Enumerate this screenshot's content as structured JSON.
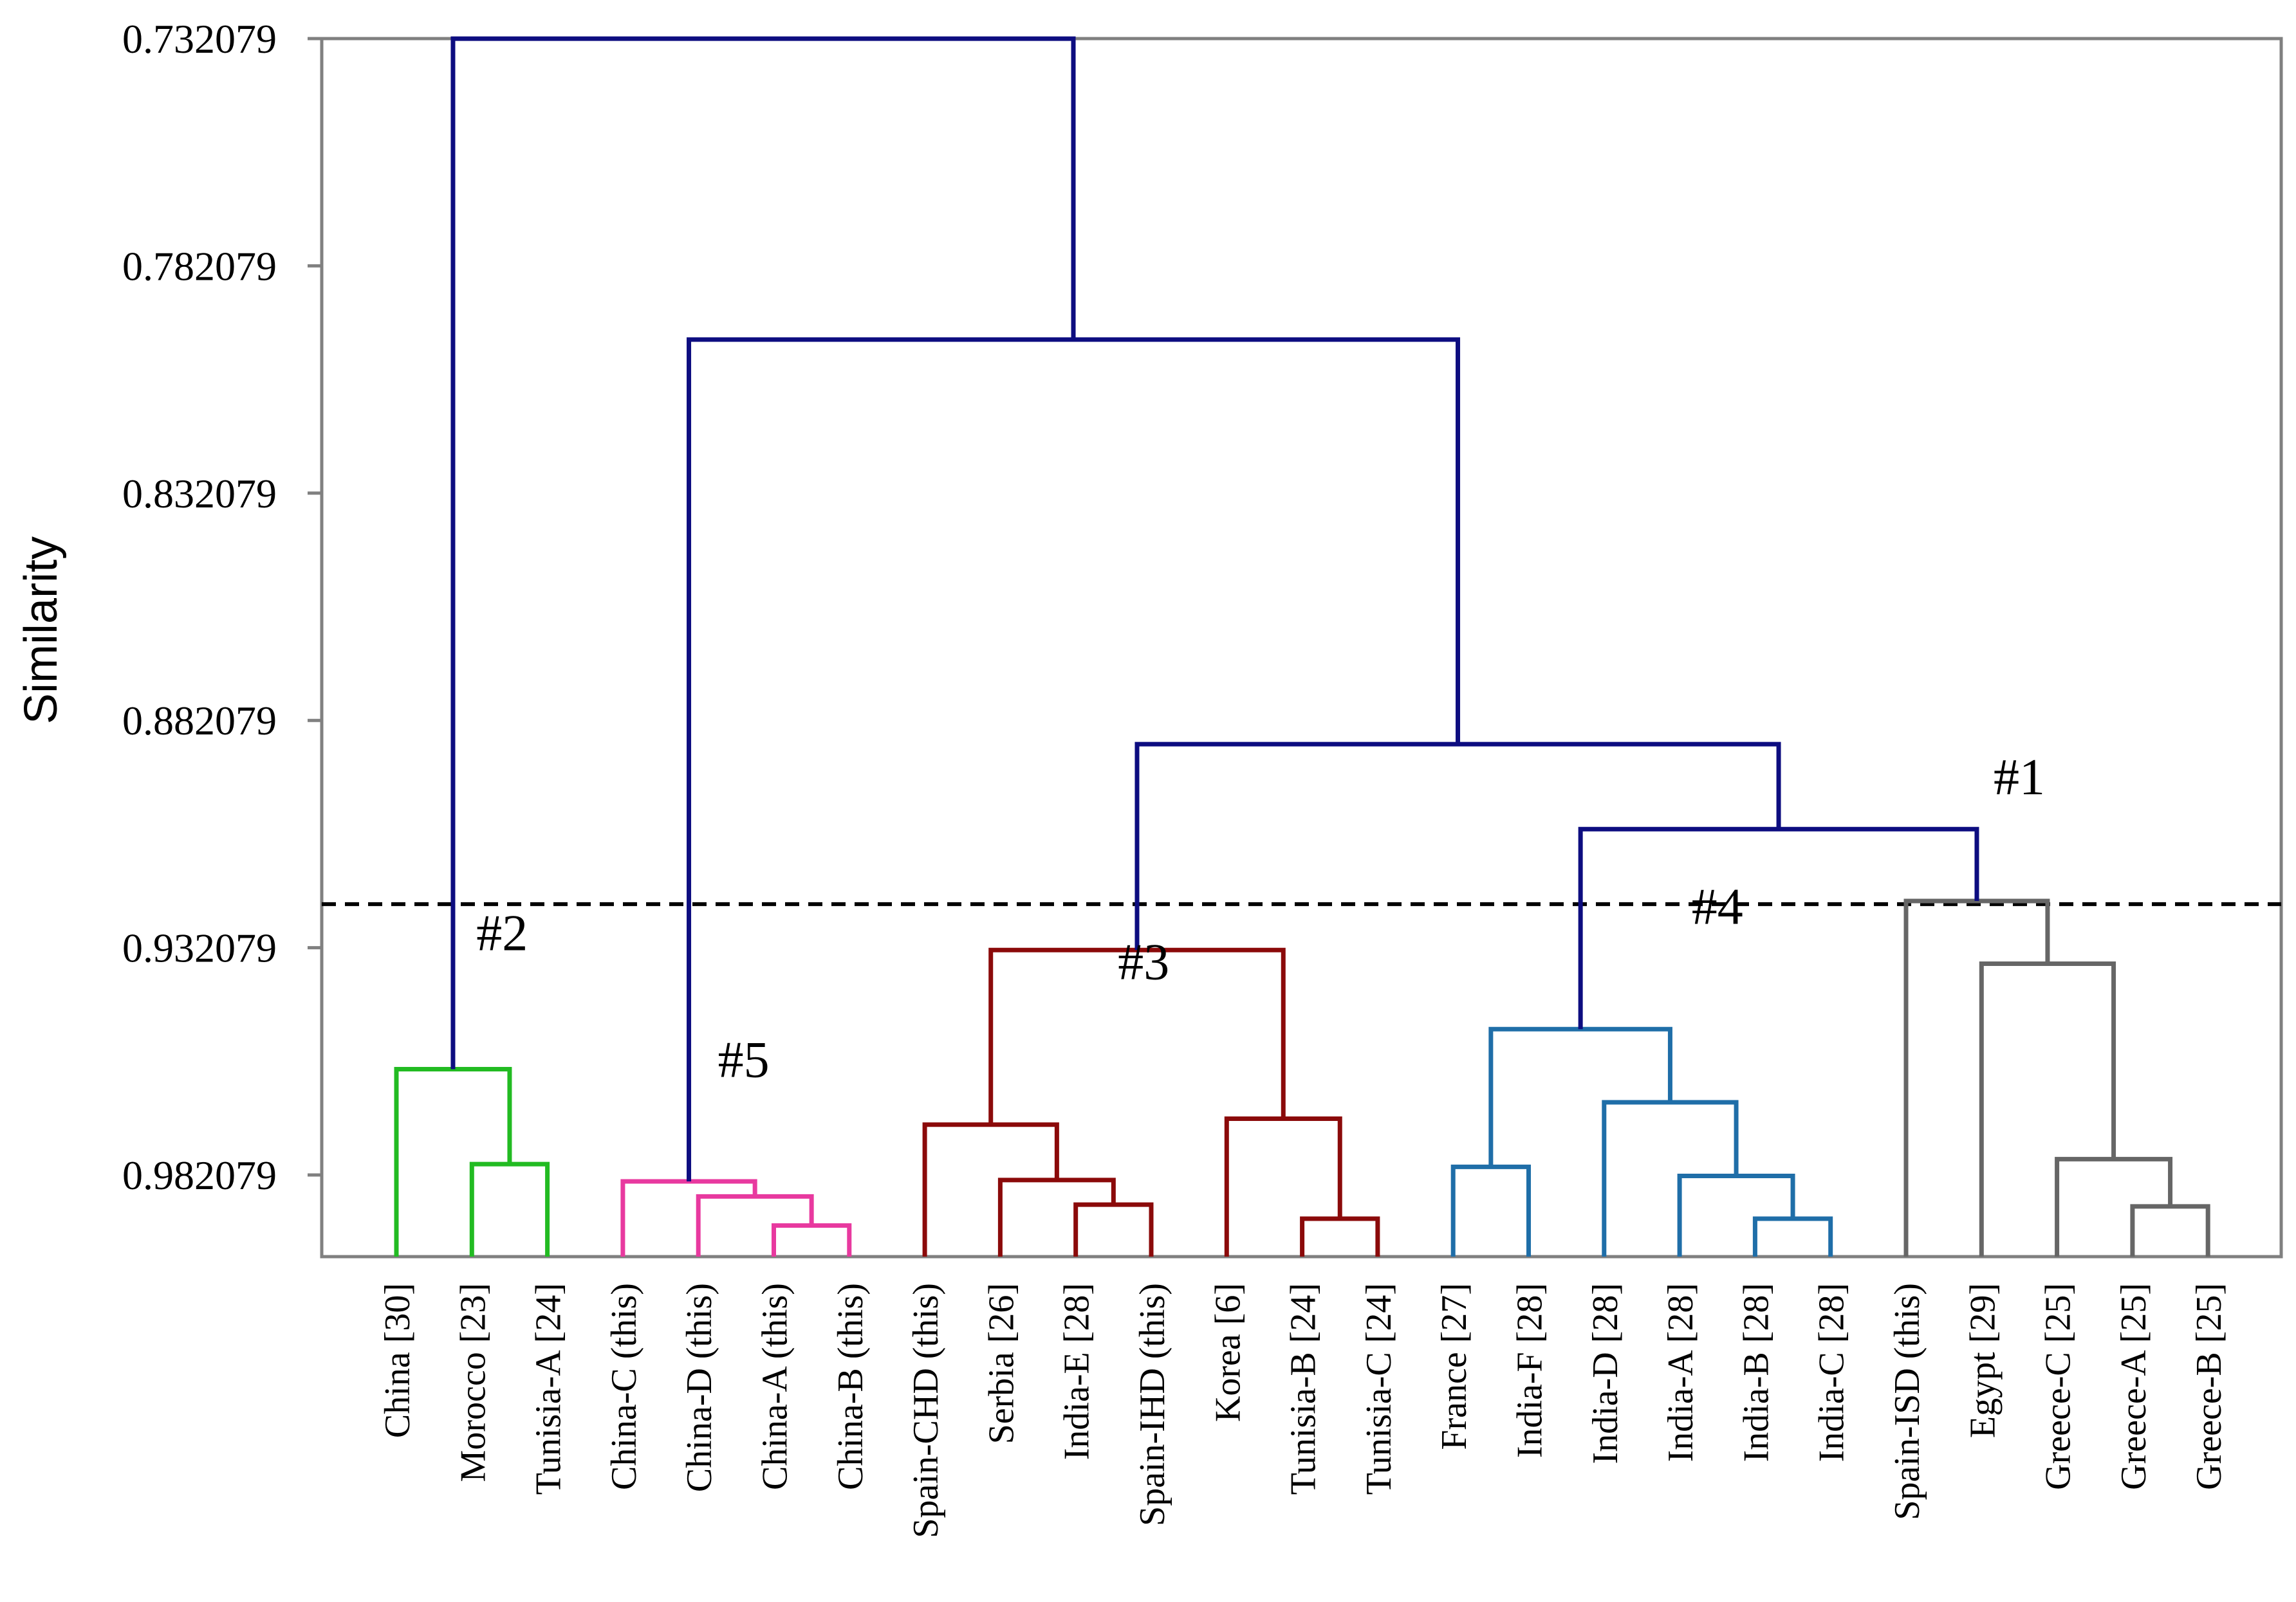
{
  "chart_data": {
    "type": "dendrogram",
    "title": "",
    "ylabel": "Similarity",
    "xlabel": "",
    "ylim": [
      0.732079,
      1.0
    ],
    "y_ticks": [
      "0.732079",
      "0.782079",
      "0.832079",
      "0.882079",
      "0.932079",
      "0.982079"
    ],
    "y_tick_values": [
      0.732079,
      0.782079,
      0.832079,
      0.882079,
      0.932079,
      0.982079
    ],
    "cut_line": 0.9225,
    "leaves": [
      "China [30]",
      "Morocco [23]",
      "Tunisia-A [24]",
      "China-C (this)",
      "China-D (this)",
      "China-A (this)",
      "China-B (this)",
      "Spain-CHD (this)",
      "Serbia [26]",
      "India-E [28]",
      "Spain-IHD (this)",
      "Korea [6]",
      "Tunisia-B [24]",
      "Tunisia-C [24]",
      "France [27]",
      "India-F [28]",
      "India-D [28]",
      "India-A [28]",
      "India-B [28]",
      "India-C [28]",
      "Spain-ISD (this)",
      "Egypt [29]",
      "Greece-C [25]",
      "Greece-A [25]",
      "Greece-B [25]"
    ],
    "merges": [
      {
        "a": 1,
        "b": 2,
        "sim": 0.9797,
        "color": "green"
      },
      {
        "a": 0,
        "b": "m0",
        "sim": 0.9588,
        "color": "green"
      },
      {
        "a": 5,
        "b": 6,
        "sim": 0.9932,
        "color": "magenta"
      },
      {
        "a": 4,
        "b": "m2",
        "sim": 0.9868,
        "color": "magenta"
      },
      {
        "a": 3,
        "b": "m3",
        "sim": 0.9835,
        "color": "magenta"
      },
      {
        "a": 9,
        "b": 10,
        "sim": 0.9886,
        "color": "darkred"
      },
      {
        "a": 8,
        "b": "m5",
        "sim": 0.9832,
        "color": "darkred"
      },
      {
        "a": 7,
        "b": "m6",
        "sim": 0.971,
        "color": "darkred"
      },
      {
        "a": 12,
        "b": 13,
        "sim": 0.9917,
        "color": "darkred"
      },
      {
        "a": 11,
        "b": "m8",
        "sim": 0.9697,
        "color": "darkred"
      },
      {
        "a": "m7",
        "b": "m9",
        "sim": 0.9326,
        "color": "darkred"
      },
      {
        "a": 14,
        "b": 15,
        "sim": 0.9803,
        "color": "steelblue"
      },
      {
        "a": 18,
        "b": 19,
        "sim": 0.9917,
        "color": "steelblue"
      },
      {
        "a": 17,
        "b": "m12",
        "sim": 0.9823,
        "color": "steelblue"
      },
      {
        "a": 16,
        "b": "m13",
        "sim": 0.9661,
        "color": "steelblue"
      },
      {
        "a": "m11",
        "b": "m14",
        "sim": 0.95,
        "color": "steelblue"
      },
      {
        "a": 23,
        "b": 24,
        "sim": 0.989,
        "color": "gray"
      },
      {
        "a": 22,
        "b": "m16",
        "sim": 0.9786,
        "color": "gray"
      },
      {
        "a": 21,
        "b": "m17",
        "sim": 0.9356,
        "color": "gray"
      },
      {
        "a": 20,
        "b": "m18",
        "sim": 0.9218,
        "color": "gray"
      },
      {
        "a": "m15",
        "b": "m19",
        "sim": 0.906,
        "color": "navy"
      },
      {
        "a": "m10",
        "b": "m20",
        "sim": 0.8873,
        "color": "navy"
      },
      {
        "a": "m4",
        "b": "m21",
        "sim": 0.7983,
        "color": "navy"
      },
      {
        "a": "m1",
        "b": "m22",
        "sim": 0.7321,
        "color": "navy"
      }
    ],
    "annotations": [
      {
        "text": "#1",
        "x_leaf": 21.5,
        "y": 0.8983
      },
      {
        "text": "#2",
        "x_leaf": 1.4,
        "y": 0.9326
      },
      {
        "text": "#3",
        "x_leaf": 9.9,
        "y": 0.939
      },
      {
        "text": "#4",
        "x_leaf": 17.5,
        "y": 0.9268
      },
      {
        "text": "#5",
        "x_leaf": 4.6,
        "y": 0.9605
      }
    ],
    "colors": {
      "green": "#22bb22",
      "magenta": "#e8399f",
      "darkred": "#8b0a0a",
      "steelblue": "#1f6ea8",
      "gray": "#666666",
      "navy": "#0d0d80",
      "axis": "#808080",
      "cut": "#000000"
    }
  }
}
